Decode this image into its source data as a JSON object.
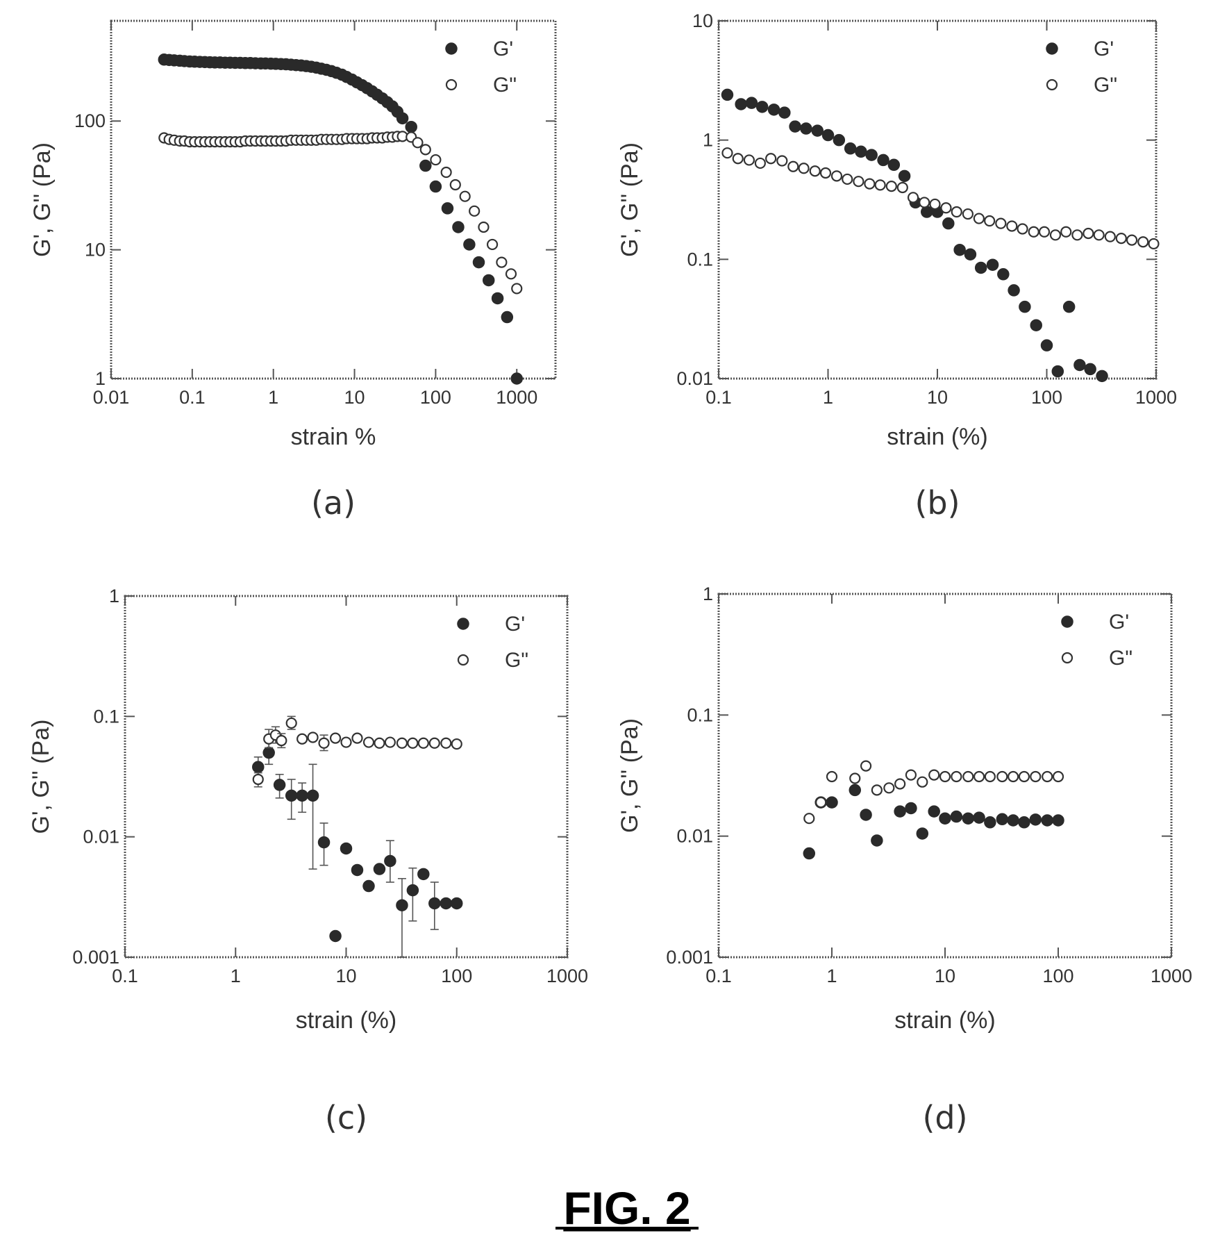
{
  "figure": {
    "title": "FIG. 2"
  },
  "colors": {
    "filled_marker": "#2a2a2a",
    "open_marker_stroke": "#333333",
    "frame": "#555555",
    "text": "#333333"
  },
  "chart_data": [
    {
      "id": "a",
      "panel_label": "(a)",
      "type": "scatter",
      "xscale": "log",
      "yscale": "log",
      "xlabel": "strain %",
      "ylabel": "G', G'' (Pa)",
      "xlim": [
        0.01,
        3000
      ],
      "ylim": [
        1,
        600
      ],
      "xticks": [
        0.01,
        0.1,
        1,
        10,
        100,
        1000
      ],
      "xtick_labels": [
        "0.01",
        "0.1",
        "1",
        "10",
        "100",
        "1000"
      ],
      "yticks": [
        1,
        10,
        100
      ],
      "ytick_labels": [
        "1",
        "10",
        "100"
      ],
      "legend_position": "top-right",
      "series": [
        {
          "name": "G'",
          "marker": "filled",
          "x": [
            0.045,
            0.052,
            0.06,
            0.07,
            0.08,
            0.093,
            0.107,
            0.124,
            0.143,
            0.165,
            0.19,
            0.22,
            0.254,
            0.293,
            0.338,
            0.39,
            0.45,
            0.52,
            0.6,
            0.7,
            0.8,
            0.93,
            1.07,
            1.24,
            1.43,
            1.65,
            1.9,
            2.2,
            2.54,
            2.93,
            3.38,
            3.9,
            4.5,
            5.2,
            6.0,
            7.0,
            8.0,
            9.3,
            10.7,
            12.4,
            14.3,
            16.5,
            19.0,
            22.0,
            25.4,
            29.3,
            33.8,
            39.0,
            50,
            75,
            100,
            140,
            190,
            260,
            340,
            450,
            580,
            760,
            1000
          ],
          "y": [
            300,
            298,
            296,
            294,
            292,
            290,
            289,
            288,
            287,
            286,
            285,
            285,
            284,
            284,
            283,
            283,
            282,
            282,
            281,
            280,
            280,
            279,
            278,
            277,
            276,
            274,
            272,
            270,
            267,
            264,
            260,
            255,
            250,
            244,
            237,
            229,
            220,
            210,
            200,
            190,
            180,
            170,
            160,
            150,
            140,
            130,
            118,
            105,
            90,
            45,
            31,
            21,
            15,
            11,
            8,
            5.8,
            4.2,
            3.0,
            1.0
          ]
        },
        {
          "name": "G\"",
          "marker": "open",
          "x": [
            0.045,
            0.052,
            0.06,
            0.07,
            0.08,
            0.093,
            0.107,
            0.124,
            0.143,
            0.165,
            0.19,
            0.22,
            0.254,
            0.293,
            0.338,
            0.39,
            0.45,
            0.52,
            0.6,
            0.7,
            0.8,
            0.93,
            1.07,
            1.24,
            1.43,
            1.65,
            1.9,
            2.2,
            2.54,
            2.93,
            3.38,
            3.9,
            4.5,
            5.2,
            6.0,
            7.0,
            8.0,
            9.3,
            10.7,
            12.4,
            14.3,
            16.5,
            19.0,
            22.0,
            25.4,
            29.3,
            33.8,
            39.0,
            50,
            60,
            75,
            100,
            135,
            175,
            230,
            300,
            390,
            500,
            650,
            850,
            1000
          ],
          "y": [
            74,
            72,
            71,
            70,
            70,
            69,
            69,
            69,
            69,
            69,
            69,
            69,
            69,
            69,
            69,
            69,
            70,
            70,
            70,
            70,
            70,
            70,
            70,
            70,
            70,
            71,
            71,
            71,
            71,
            71,
            71,
            72,
            72,
            72,
            72,
            72,
            73,
            73,
            73,
            73,
            73,
            74,
            74,
            74,
            75,
            75,
            76,
            76,
            75,
            68,
            60,
            50,
            40,
            32,
            26,
            20,
            15,
            11,
            8,
            6.5,
            5
          ]
        }
      ]
    },
    {
      "id": "b",
      "panel_label": "(b)",
      "type": "scatter",
      "xscale": "log",
      "yscale": "log",
      "xlabel": "strain (%)",
      "ylabel": "G', G'' (Pa)",
      "xlim": [
        0.1,
        1000
      ],
      "ylim": [
        0.01,
        10
      ],
      "xticks": [
        0.1,
        1,
        10,
        100,
        1000
      ],
      "xtick_labels": [
        "0.1",
        "1",
        "10",
        "100",
        "1000"
      ],
      "yticks": [
        0.01,
        0.1,
        1,
        10
      ],
      "ytick_labels": [
        "0.01",
        "0.1",
        "1",
        "10"
      ],
      "legend_position": "top-right",
      "series": [
        {
          "name": "G'",
          "marker": "filled",
          "x": [
            0.12,
            0.16,
            0.2,
            0.25,
            0.32,
            0.4,
            0.5,
            0.63,
            0.8,
            1.0,
            1.26,
            1.6,
            2.0,
            2.5,
            3.2,
            4.0,
            5.0,
            6.3,
            8.0,
            10,
            12.6,
            16,
            20,
            25,
            32,
            40,
            50,
            63,
            80,
            100,
            126,
            160,
            200,
            250,
            320
          ],
          "y": [
            2.4,
            2.0,
            2.05,
            1.9,
            1.8,
            1.7,
            1.3,
            1.25,
            1.2,
            1.1,
            1.0,
            0.85,
            0.8,
            0.75,
            0.68,
            0.62,
            0.5,
            0.3,
            0.25,
            0.25,
            0.2,
            0.12,
            0.11,
            0.085,
            0.09,
            0.075,
            0.055,
            0.04,
            0.028,
            0.019,
            0.0115,
            0.04,
            0.013,
            0.012,
            0.0105
          ]
        },
        {
          "name": "G\"",
          "marker": "open",
          "x": [
            0.12,
            0.15,
            0.19,
            0.24,
            0.3,
            0.38,
            0.48,
            0.6,
            0.76,
            0.95,
            1.2,
            1.5,
            1.9,
            2.4,
            3.0,
            3.8,
            4.8,
            6.0,
            7.6,
            9.5,
            12,
            15,
            19,
            24,
            30,
            38,
            48,
            60,
            76,
            95,
            120,
            150,
            190,
            240,
            300,
            380,
            480,
            600,
            760,
            950
          ],
          "y": [
            0.78,
            0.7,
            0.68,
            0.64,
            0.7,
            0.67,
            0.6,
            0.58,
            0.55,
            0.53,
            0.5,
            0.47,
            0.45,
            0.43,
            0.42,
            0.41,
            0.4,
            0.33,
            0.3,
            0.29,
            0.27,
            0.25,
            0.24,
            0.22,
            0.21,
            0.2,
            0.19,
            0.18,
            0.17,
            0.17,
            0.16,
            0.17,
            0.16,
            0.165,
            0.16,
            0.155,
            0.15,
            0.145,
            0.14,
            0.135
          ]
        }
      ]
    },
    {
      "id": "c",
      "panel_label": "(c)",
      "type": "scatter",
      "xscale": "log",
      "yscale": "log",
      "xlabel": "strain (%)",
      "ylabel": "G', G'' (Pa)",
      "xlim": [
        0.1,
        1000
      ],
      "ylim": [
        0.001,
        1
      ],
      "xticks": [
        0.1,
        1,
        10,
        100,
        1000
      ],
      "xtick_labels": [
        "0.1",
        "1",
        "10",
        "100",
        "1000"
      ],
      "yticks": [
        0.001,
        0.01,
        0.1,
        1
      ],
      "ytick_labels": [
        "0.001",
        "0.01",
        "0.1",
        "1"
      ],
      "legend_position": "top-right",
      "series": [
        {
          "name": "G'",
          "marker": "filled",
          "x": [
            1.6,
            2.0,
            2.5,
            3.2,
            4.0,
            5.0,
            6.3,
            8.0,
            10,
            12.6,
            16,
            20,
            25,
            32,
            40,
            50,
            63,
            80,
            100
          ],
          "y": [
            0.038,
            0.05,
            0.027,
            0.022,
            0.022,
            0.022,
            0.009,
            0.0015,
            0.008,
            0.0053,
            0.0039,
            0.0054,
            0.0063,
            0.0027,
            0.0036,
            0.0049,
            0.0028,
            0.0028,
            0.0028
          ],
          "error_low": [
            0.032,
            0.04,
            0.021,
            0.014,
            0.016,
            0.0054,
            0.0058,
            null,
            null,
            null,
            null,
            null,
            0.0042,
            0.001,
            0.002,
            null,
            0.0017,
            null,
            null
          ],
          "error_high": [
            0.046,
            0.062,
            0.033,
            0.03,
            0.028,
            0.04,
            0.013,
            null,
            null,
            null,
            null,
            null,
            0.0093,
            0.0045,
            0.0055,
            null,
            0.0042,
            null,
            null
          ]
        },
        {
          "name": "G\"",
          "marker": "open",
          "x": [
            1.6,
            2.0,
            2.3,
            2.6,
            3.2,
            4.0,
            5.0,
            6.3,
            8.0,
            10,
            12.6,
            16,
            20,
            25,
            32,
            40,
            50,
            63,
            80,
            100
          ],
          "y": [
            0.03,
            0.065,
            0.07,
            0.063,
            0.088,
            0.065,
            0.067,
            0.06,
            0.066,
            0.061,
            0.066,
            0.061,
            0.06,
            0.061,
            0.06,
            0.06,
            0.06,
            0.06,
            0.06,
            0.059
          ],
          "error_low": [
            0.026,
            0.055,
            0.06,
            0.055,
            0.078,
            null,
            null,
            0.052,
            null,
            null,
            null,
            null,
            null,
            null,
            null,
            null,
            null,
            null,
            null,
            null
          ],
          "error_high": [
            0.034,
            0.078,
            0.082,
            0.072,
            0.1,
            null,
            null,
            0.07,
            null,
            null,
            null,
            null,
            null,
            null,
            null,
            null,
            null,
            null,
            null,
            null
          ]
        }
      ]
    },
    {
      "id": "d",
      "panel_label": "(d)",
      "type": "scatter",
      "xscale": "log",
      "yscale": "log",
      "xlabel": "strain (%)",
      "ylabel": "G', G'' (Pa)",
      "xlim": [
        0.1,
        1000
      ],
      "ylim": [
        0.001,
        1
      ],
      "xticks": [
        0.1,
        1,
        10,
        100,
        1000
      ],
      "xtick_labels": [
        "0.1",
        "1",
        "10",
        "100",
        "1000"
      ],
      "yticks": [
        0.001,
        0.01,
        0.1,
        1
      ],
      "ytick_labels": [
        "0.001",
        "0.01",
        "0.1",
        "1"
      ],
      "legend_position": "top-right",
      "series": [
        {
          "name": "G'",
          "marker": "filled",
          "x": [
            0.63,
            0.8,
            1.0,
            1.6,
            2.0,
            2.5,
            4.0,
            5.0,
            6.3,
            8.0,
            10,
            12.6,
            16,
            20,
            25,
            32,
            40,
            50,
            63,
            80,
            100
          ],
          "y": [
            0.0072,
            0.019,
            0.019,
            0.024,
            0.015,
            0.0092,
            0.016,
            0.017,
            0.0105,
            0.016,
            0.014,
            0.0145,
            0.014,
            0.0142,
            0.013,
            0.0138,
            0.0135,
            0.013,
            0.0137,
            0.0135,
            0.0135
          ]
        },
        {
          "name": "G\"",
          "marker": "open",
          "x": [
            0.63,
            0.8,
            1.0,
            1.6,
            2.0,
            2.5,
            3.2,
            4.0,
            5.0,
            6.3,
            8.0,
            10,
            12.6,
            16,
            20,
            25,
            32,
            40,
            50,
            63,
            80,
            100
          ],
          "y": [
            0.014,
            0.019,
            0.031,
            0.03,
            0.038,
            0.024,
            0.025,
            0.027,
            0.032,
            0.028,
            0.032,
            0.031,
            0.031,
            0.031,
            0.031,
            0.031,
            0.031,
            0.031,
            0.031,
            0.031,
            0.031,
            0.031
          ]
        }
      ]
    }
  ]
}
